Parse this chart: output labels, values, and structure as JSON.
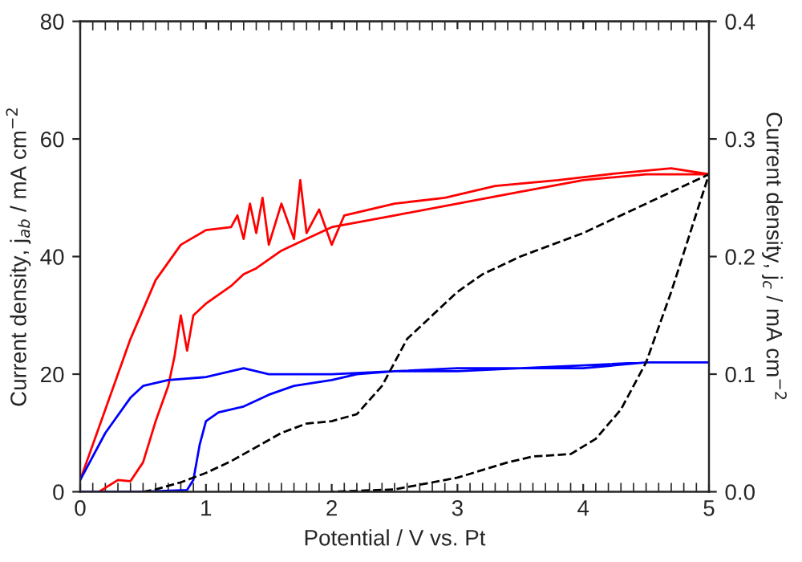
{
  "chart_data": {
    "type": "line",
    "xlabel": "Potential / V vs. Pt",
    "ylabel": "Current density, j$_{ab}$ / mA cm$^{−2}$",
    "y2label": "Current density, j$_{c}$ / mA cm$^{−2}$",
    "xlim": [
      0,
      5
    ],
    "xticks": [
      0,
      1,
      2,
      3,
      4,
      5
    ],
    "ylim": [
      0,
      80
    ],
    "yticks": [
      0,
      20,
      40,
      60,
      80
    ],
    "y2lim": [
      0,
      0.4
    ],
    "y2ticks": [
      {
        "value": 0,
        "label": "0.0"
      },
      0.1,
      0.2,
      0.3,
      0.4
    ],
    "grid": false,
    "legend": false,
    "marker": "none",
    "series": [
      {
        "color": "#ff0000",
        "line_style": "solid",
        "x": [
          0,
          0.15,
          0.3,
          0.4,
          0.5,
          0.6,
          0.7,
          0.75,
          0.8,
          0.85,
          0.9,
          1.0,
          1.2,
          1.3,
          1.4,
          1.6,
          1.8,
          2.0,
          2.5,
          3.0,
          3.5,
          4.0,
          4.5,
          5.0,
          4.7,
          4.2,
          3.8,
          3.3,
          2.9,
          2.5,
          2.1,
          2.0,
          1.9,
          1.8,
          1.75,
          1.7,
          1.6,
          1.5,
          1.45,
          1.4,
          1.35,
          1.3,
          1.25,
          1.2,
          1.0,
          0.8,
          0.6,
          0.4,
          0.2,
          0
        ],
        "values": [
          0,
          0,
          2,
          1.8,
          5,
          12,
          18,
          23,
          30,
          24,
          30,
          32,
          35,
          37,
          38,
          41,
          43,
          45,
          47,
          49,
          51,
          53,
          54,
          54,
          55,
          54,
          53,
          52,
          50,
          49,
          47,
          42,
          48,
          44,
          53,
          43,
          49,
          42,
          50,
          44,
          49,
          43,
          47,
          45,
          44.5,
          42,
          36,
          26,
          14,
          2
        ]
      },
      {
        "color": "#0000ff",
        "line_style": "solid",
        "x": [
          0,
          0.5,
          0.85,
          0.9,
          0.95,
          1.0,
          1.1,
          1.3,
          1.5,
          1.7,
          2.0,
          2.2,
          2.5,
          3.0,
          3.5,
          4.0,
          4.5,
          5.0,
          4.5,
          4.0,
          3.5,
          3.0,
          2.5,
          2.0,
          1.5,
          1.3,
          1.0,
          0.7,
          0.5,
          0.4,
          0.2,
          0
        ],
        "values": [
          0,
          0,
          0.3,
          2,
          8,
          12,
          13.5,
          14.5,
          16.5,
          18,
          19,
          20,
          20.5,
          20.5,
          21,
          21,
          22,
          22,
          22,
          21.5,
          21,
          21,
          20.5,
          20,
          20,
          21,
          19.5,
          19,
          18,
          16,
          10,
          2
        ]
      },
      {
        "color": "#000000",
        "line_style": "dashed",
        "axis": "y2",
        "x": [
          0.5,
          0.6,
          0.8,
          1.0,
          1.2,
          1.4,
          1.6,
          1.8,
          2.0,
          2.2,
          2.4,
          2.6,
          2.8,
          3.0,
          3.2,
          3.5,
          4.0,
          4.5,
          5.0,
          4.85,
          4.7,
          4.5,
          4.3,
          4.1,
          3.9,
          3.6,
          3.4,
          3.0,
          2.5,
          2.0
        ],
        "values": [
          0,
          0.002,
          0.008,
          0.016,
          0.026,
          0.038,
          0.05,
          0.058,
          0.06,
          0.066,
          0.09,
          0.13,
          0.15,
          0.17,
          0.185,
          0.2,
          0.22,
          0.245,
          0.27,
          0.22,
          0.17,
          0.11,
          0.07,
          0.045,
          0.032,
          0.03,
          0.025,
          0.012,
          0.002,
          0
        ]
      }
    ]
  }
}
